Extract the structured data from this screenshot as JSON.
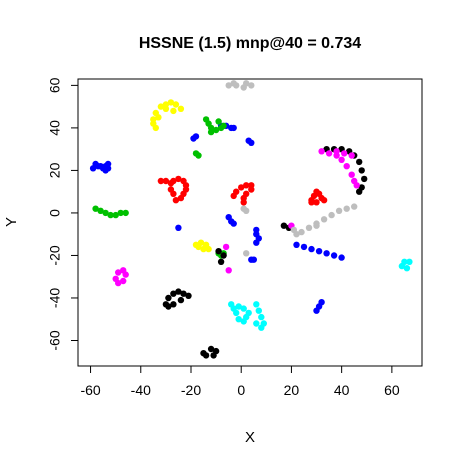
{
  "chart_data": {
    "type": "scatter",
    "title": "HSSNE (1.5) mnp@40 = 0.734",
    "xlabel": "X",
    "ylabel": "Y",
    "xlim": [
      -65,
      72
    ],
    "ylim": [
      -72,
      63
    ],
    "x_ticks": [
      "-60",
      "-40",
      "-20",
      "0",
      "20",
      "40",
      "60"
    ],
    "x_tick_values": [
      -60,
      -40,
      -20,
      0,
      20,
      40,
      60
    ],
    "y_ticks": [
      "-60",
      "-40",
      "-20",
      "0",
      "20",
      "40",
      "60"
    ],
    "y_tick_values": [
      -60,
      -40,
      -20,
      0,
      20,
      40,
      60
    ],
    "grid": false,
    "legend": "none",
    "series": [
      {
        "color": "#0000ff",
        "points": [
          [
            -59,
            21
          ],
          [
            -58,
            23
          ],
          [
            -57,
            22
          ],
          [
            -56,
            22
          ],
          [
            -55,
            21
          ],
          [
            -54,
            22
          ],
          [
            -53,
            23
          ],
          [
            -53,
            21
          ],
          [
            -54,
            20
          ],
          [
            -8,
            41
          ],
          [
            -6,
            41
          ],
          [
            -4,
            40
          ],
          [
            -3,
            40
          ],
          [
            -19,
            35
          ],
          [
            -18,
            36
          ],
          [
            3,
            34
          ],
          [
            4,
            33
          ],
          [
            -5,
            -2
          ],
          [
            -4,
            -4
          ],
          [
            -3,
            -5
          ],
          [
            6,
            -8
          ],
          [
            6,
            -10
          ],
          [
            7,
            -12
          ],
          [
            6,
            -14
          ],
          [
            22,
            -15
          ],
          [
            25,
            -16
          ],
          [
            28,
            -17
          ],
          [
            31,
            -18
          ],
          [
            34,
            -19
          ],
          [
            37,
            -20
          ],
          [
            40,
            -21
          ],
          [
            4,
            -22
          ],
          [
            5,
            -22
          ],
          [
            32,
            -42
          ],
          [
            31,
            -44
          ],
          [
            30,
            -46
          ],
          [
            -25,
            -7
          ]
        ]
      },
      {
        "color": "#00c000",
        "points": [
          [
            -58,
            2
          ],
          [
            -56,
            1
          ],
          [
            -54,
            0
          ],
          [
            -52,
            -1
          ],
          [
            -50,
            -1
          ],
          [
            -48,
            0
          ],
          [
            -46,
            0
          ],
          [
            -14,
            44
          ],
          [
            -13,
            42
          ],
          [
            -12,
            40
          ],
          [
            -10,
            39
          ],
          [
            -8,
            40
          ],
          [
            -7,
            41
          ],
          [
            -9,
            43
          ],
          [
            -12,
            38
          ],
          [
            -18,
            28
          ],
          [
            -17,
            27
          ],
          [
            -9,
            -19
          ],
          [
            -8,
            -20
          ],
          [
            -7,
            -19
          ]
        ]
      },
      {
        "color": "#ffff00",
        "points": [
          [
            -35,
            44
          ],
          [
            -34,
            47
          ],
          [
            -32,
            50
          ],
          [
            -30,
            51
          ],
          [
            -28,
            52
          ],
          [
            -26,
            51
          ],
          [
            -24,
            49
          ],
          [
            -27,
            48
          ],
          [
            -30,
            49
          ],
          [
            -33,
            45
          ],
          [
            -35,
            42
          ],
          [
            -34,
            40
          ],
          [
            -18,
            -15
          ],
          [
            -16,
            -14
          ],
          [
            -14,
            -15
          ],
          [
            -13,
            -17
          ],
          [
            -15,
            -17
          ],
          [
            -17,
            -16
          ]
        ]
      },
      {
        "color": "#ff0000",
        "points": [
          [
            -32,
            15
          ],
          [
            -30,
            15
          ],
          [
            -28,
            14
          ],
          [
            -27,
            15
          ],
          [
            -25,
            16
          ],
          [
            -23,
            15
          ],
          [
            -22,
            13
          ],
          [
            -22,
            11
          ],
          [
            -23,
            9
          ],
          [
            -24,
            7
          ],
          [
            -26,
            6
          ],
          [
            -27,
            9
          ],
          [
            -28,
            11
          ],
          [
            -2,
            10
          ],
          [
            0,
            12
          ],
          [
            2,
            13
          ],
          [
            4,
            13
          ],
          [
            4,
            11
          ],
          [
            2,
            9
          ],
          [
            1,
            7
          ],
          [
            1,
            5
          ],
          [
            -3,
            8
          ],
          [
            28,
            6
          ],
          [
            29,
            8
          ],
          [
            30,
            10
          ],
          [
            31,
            9
          ],
          [
            32,
            7
          ],
          [
            30,
            5
          ],
          [
            28,
            5
          ],
          [
            33,
            6
          ]
        ]
      },
      {
        "color": "#000000",
        "points": [
          [
            34,
            30
          ],
          [
            37,
            30
          ],
          [
            40,
            30
          ],
          [
            43,
            29
          ],
          [
            45,
            27
          ],
          [
            47,
            24
          ],
          [
            48,
            20
          ],
          [
            49,
            16
          ],
          [
            48,
            12
          ],
          [
            47,
            10
          ],
          [
            -30,
            -43
          ],
          [
            -29,
            -40
          ],
          [
            -27,
            -38
          ],
          [
            -25,
            -37
          ],
          [
            -23,
            -38
          ],
          [
            -21,
            -39
          ],
          [
            -24,
            -41
          ],
          [
            -27,
            -43
          ],
          [
            -29,
            -44
          ],
          [
            -15,
            -66
          ],
          [
            -12,
            -64
          ],
          [
            -10,
            -65
          ],
          [
            -11,
            -67
          ],
          [
            -14,
            -67
          ],
          [
            17,
            -6
          ],
          [
            19,
            -7
          ],
          [
            -7,
            -20
          ],
          [
            -8,
            -23
          ],
          [
            -9,
            -18
          ]
        ]
      },
      {
        "color": "#ff00ff",
        "points": [
          [
            32,
            29
          ],
          [
            35,
            28
          ],
          [
            38,
            27
          ],
          [
            40,
            25
          ],
          [
            42,
            22
          ],
          [
            44,
            18
          ],
          [
            45,
            15
          ],
          [
            46,
            13
          ],
          [
            38,
            29
          ],
          [
            41,
            28
          ],
          [
            44,
            27
          ],
          [
            -49,
            -28
          ],
          [
            -47,
            -27
          ],
          [
            -46,
            -29
          ],
          [
            -47,
            -32
          ],
          [
            -49,
            -33
          ],
          [
            -50,
            -31
          ],
          [
            -6,
            -16
          ],
          [
            -5,
            -27
          ],
          [
            20,
            -6
          ]
        ]
      },
      {
        "color": "#bebebe",
        "points": [
          [
            -5,
            60
          ],
          [
            -2,
            60
          ],
          [
            1,
            59
          ],
          [
            4,
            60
          ],
          [
            2,
            61
          ],
          [
            -3,
            61
          ],
          [
            24,
            -9
          ],
          [
            27,
            -7
          ],
          [
            30,
            -5
          ],
          [
            33,
            -3
          ],
          [
            36,
            -1
          ],
          [
            39,
            1
          ],
          [
            42,
            2
          ],
          [
            45,
            3
          ],
          [
            30,
            -6
          ],
          [
            1,
            2
          ],
          [
            2,
            1
          ],
          [
            21,
            -8
          ],
          [
            22,
            -10
          ],
          [
            2,
            -19
          ]
        ]
      },
      {
        "color": "#00ffff",
        "points": [
          [
            -4,
            -43
          ],
          [
            -3,
            -45
          ],
          [
            -2,
            -47
          ],
          [
            -1,
            -50
          ],
          [
            1,
            -51
          ],
          [
            2,
            -49
          ],
          [
            3,
            -47
          ],
          [
            1,
            -45
          ],
          [
            -1,
            -44
          ],
          [
            6,
            -43
          ],
          [
            7,
            -46
          ],
          [
            8,
            -49
          ],
          [
            9,
            -52
          ],
          [
            8,
            -54
          ],
          [
            6,
            -52
          ],
          [
            64,
            -25
          ],
          [
            65,
            -23
          ],
          [
            67,
            -23
          ],
          [
            66,
            -26
          ]
        ]
      }
    ]
  }
}
